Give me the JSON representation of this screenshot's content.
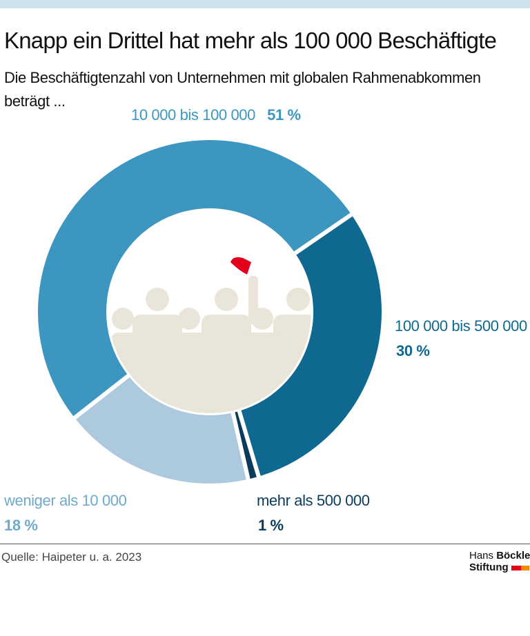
{
  "title": "Knapp ein Drittel hat mehr als 100 000 Beschäftigte",
  "subtitle": "Die Beschäftigtenzahl von Unternehmen mit globalen Rahmenabkommen beträgt ...",
  "source": "Quelle: Haipeter u. a. 2023",
  "logo": {
    "line1_light": "Hans ",
    "line1_bold": "Böckler",
    "line2": "Stiftung"
  },
  "colors": {
    "band": "#cfe3ee",
    "accent_red": "#e2001a",
    "accent_orange": "#f08a00"
  },
  "chart_data": {
    "type": "pie",
    "variant": "donut",
    "center_illustration": "group of people, one raising red flag",
    "slices": [
      {
        "label": "100 000 bis 500 000",
        "value": 30,
        "value_label": "30 %",
        "color": "#0f6890"
      },
      {
        "label": "mehr als 500 000",
        "value": 1,
        "value_label": "1 %",
        "color": "#0b3b5c"
      },
      {
        "label": "weniger als 10 000",
        "value": 18,
        "value_label": "18 %",
        "color": "#adc9de"
      },
      {
        "label": "10 000 bis 100 000",
        "value": 51,
        "value_label": "51 %",
        "color": "#3d96bf"
      }
    ]
  }
}
